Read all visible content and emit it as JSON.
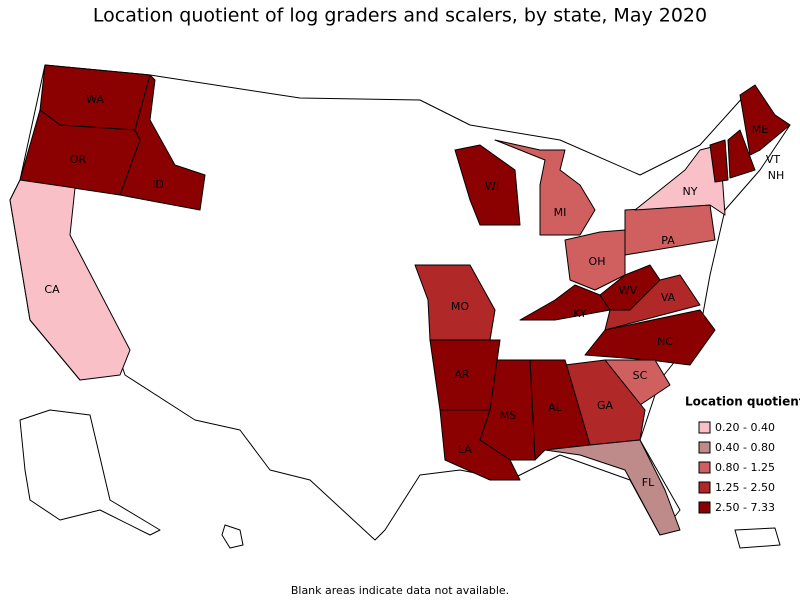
{
  "title": "Location quotient of log graders and scalers, by state, May 2020",
  "legend": {
    "title": "Location quotient",
    "items": [
      {
        "label": "0.20 - 0.40",
        "color": "#f9c0c8"
      },
      {
        "label": "0.40 - 0.80",
        "color": "#bf8a8a"
      },
      {
        "label": "0.80 - 1.25",
        "color": "#d06060"
      },
      {
        "label": "1.25 - 2.50",
        "color": "#b02828"
      },
      {
        "label": "2.50 - 7.33",
        "color": "#8b0000"
      }
    ]
  },
  "states": [
    {
      "label": "WA",
      "color": "#8b0000"
    },
    {
      "label": "OR",
      "color": "#8b0000"
    },
    {
      "label": "ID",
      "color": "#8b0000"
    },
    {
      "label": "CA",
      "color": "#f9c0c8"
    },
    {
      "label": "WI",
      "color": "#8b0000"
    },
    {
      "label": "MI",
      "color": "#d06060"
    },
    {
      "label": "OH",
      "color": "#d06060"
    },
    {
      "label": "PA",
      "color": "#d06060"
    },
    {
      "label": "NY",
      "color": "#f9c0c8"
    },
    {
      "label": "ME",
      "color": "#8b0000"
    },
    {
      "label": "VT",
      "color": "#8b0000"
    },
    {
      "label": "NH",
      "color": "#8b0000"
    },
    {
      "label": "MO",
      "color": "#b02828"
    },
    {
      "label": "KY",
      "color": "#8b0000"
    },
    {
      "label": "WV",
      "color": "#8b0000"
    },
    {
      "label": "VA",
      "color": "#b02828"
    },
    {
      "label": "NC",
      "color": "#8b0000"
    },
    {
      "label": "SC",
      "color": "#d06060"
    },
    {
      "label": "GA",
      "color": "#b02828"
    },
    {
      "label": "AL",
      "color": "#8b0000"
    },
    {
      "label": "MS",
      "color": "#8b0000"
    },
    {
      "label": "AR",
      "color": "#8b0000"
    },
    {
      "label": "LA",
      "color": "#8b0000"
    },
    {
      "label": "FL",
      "color": "#bf8a8a"
    }
  ],
  "footnote": "Blank areas indicate data not available."
}
